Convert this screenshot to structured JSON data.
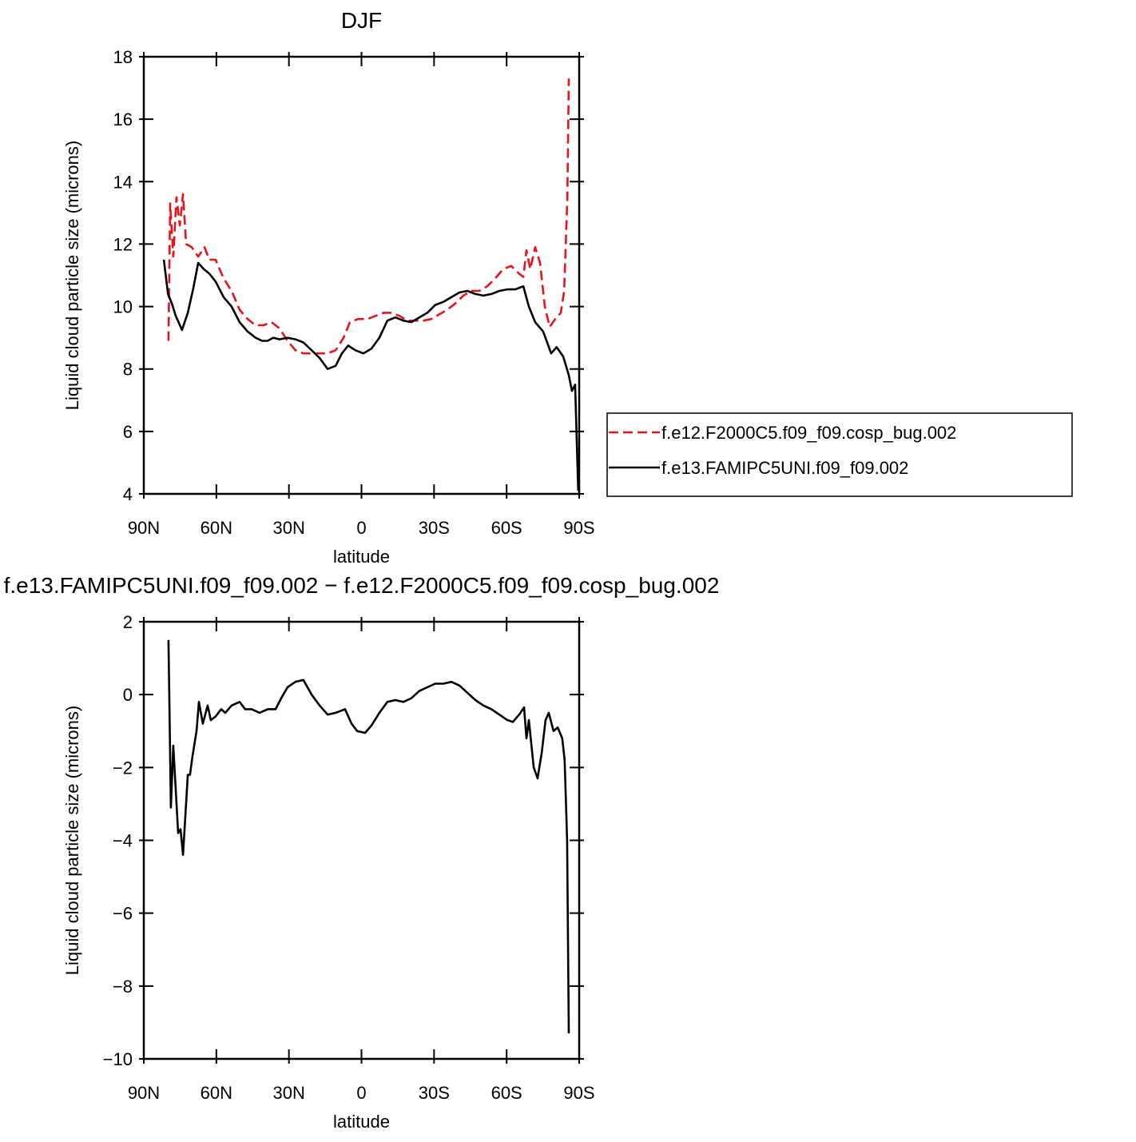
{
  "chart_data": [
    {
      "type": "line",
      "title": "DJF",
      "xlabel": "latitude",
      "ylabel": "Liquid cloud particle size (microns)",
      "xlim": [
        90,
        -90
      ],
      "xticks": [
        {
          "value": 90,
          "label": "90N"
        },
        {
          "value": 60,
          "label": "60N"
        },
        {
          "value": 30,
          "label": "30N"
        },
        0,
        {
          "value": -30,
          "label": "30S"
        },
        {
          "value": -60,
          "label": "60S"
        },
        {
          "value": -90,
          "label": "90S"
        }
      ],
      "ylim": [
        4,
        18
      ],
      "yticks": [
        4,
        6,
        8,
        10,
        12,
        14,
        16,
        18
      ],
      "legend": "right",
      "series": [
        {
          "name": "f.e12.F2000C5.f09_f09.cosp_bug.002",
          "color": "#e8121a",
          "style": "dashed",
          "x": [
            79.8,
            79.1,
            77.8,
            76.5,
            75.1,
            73.8,
            72.5,
            70.2,
            67.5,
            64.9,
            62.9,
            60.3,
            57,
            53.7,
            50.4,
            47.1,
            43.8,
            40.5,
            37.2,
            33.9,
            30.6,
            27.3,
            24,
            20.6,
            17.3,
            14,
            10.7,
            7.4,
            4.8,
            1.4,
            -2.5,
            -5.8,
            -9.1,
            -12.4,
            -15.7,
            -19,
            -22.3,
            -25.6,
            -28.9,
            -32.2,
            -35.5,
            -38.8,
            -42.1,
            -45.4,
            -48.7,
            -52,
            -55.3,
            -58.6,
            -61.9,
            -65.2,
            -66.9,
            -68.2,
            -69.8,
            -71.8,
            -73.8,
            -75.8,
            -77.8,
            -80.1,
            -82.4,
            -83.8,
            -85.1,
            -85.7
          ],
          "values": [
            8.9,
            13.3,
            11.6,
            13.5,
            12.6,
            13.6,
            12.0,
            11.9,
            11.6,
            11.9,
            11.5,
            11.5,
            10.9,
            10.5,
            9.9,
            9.6,
            9.4,
            9.4,
            9.5,
            9.3,
            8.9,
            8.6,
            8.5,
            8.5,
            8.5,
            8.5,
            8.6,
            9.0,
            9.5,
            9.6,
            9.6,
            9.7,
            9.8,
            9.8,
            9.7,
            9.55,
            9.55,
            9.55,
            9.6,
            9.75,
            9.9,
            10.1,
            10.35,
            10.5,
            10.5,
            10.65,
            10.9,
            11.2,
            11.3,
            11.05,
            10.95,
            11.8,
            11.2,
            11.9,
            11.4,
            10.0,
            9.35,
            9.6,
            9.8,
            10.5,
            13.5,
            17.3
          ]
        },
        {
          "name": "f.e13.FAMIPC5UNI.f09_f09.002",
          "color": "#000000",
          "style": "solid",
          "x": [
            81.7,
            80,
            78.4,
            76.8,
            74.2,
            71.8,
            69.5,
            67.5,
            65.2,
            62.9,
            60.3,
            57,
            53.7,
            50.4,
            47.1,
            43.8,
            41.1,
            38.8,
            36.5,
            33.9,
            30.6,
            27.3,
            24,
            20.6,
            17.3,
            14,
            10.7,
            8.1,
            5.5,
            2.5,
            -0.8,
            -4.1,
            -7.4,
            -10.7,
            -14,
            -17.3,
            -20.6,
            -23.9,
            -27.2,
            -30.5,
            -33.9,
            -37.2,
            -40.5,
            -43.8,
            -47.1,
            -50.4,
            -53.7,
            -57,
            -60.3,
            -63.6,
            -66.9,
            -69.2,
            -71.8,
            -75.1,
            -78.4,
            -80.7,
            -83.4,
            -85.7,
            -87,
            -88.3,
            -89.6
          ],
          "values": [
            11.5,
            10.4,
            10.1,
            9.7,
            9.25,
            9.8,
            10.6,
            11.4,
            11.2,
            11.05,
            10.8,
            10.3,
            10.0,
            9.5,
            9.2,
            9.0,
            8.9,
            8.9,
            9.0,
            8.95,
            9.0,
            8.95,
            8.85,
            8.6,
            8.35,
            8.0,
            8.1,
            8.5,
            8.75,
            8.6,
            8.5,
            8.65,
            9.0,
            9.55,
            9.65,
            9.55,
            9.5,
            9.65,
            9.8,
            10.05,
            10.15,
            10.3,
            10.45,
            10.5,
            10.4,
            10.35,
            10.4,
            10.5,
            10.55,
            10.55,
            10.65,
            10.0,
            9.5,
            9.2,
            8.5,
            8.7,
            8.4,
            7.8,
            7.3,
            7.5,
            4.1
          ]
        }
      ]
    },
    {
      "type": "line",
      "title": "f.e13.FAMIPC5UNI.f09_f09.002 − f.e12.F2000C5.f09_f09.cosp_bug.002",
      "xlabel": "latitude",
      "ylabel": "Liquid cloud particle size (microns)",
      "xlim": [
        90,
        -90
      ],
      "xticks": [
        {
          "value": 90,
          "label": "90N"
        },
        {
          "value": 60,
          "label": "60N"
        },
        {
          "value": 30,
          "label": "30N"
        },
        0,
        {
          "value": -30,
          "label": "30S"
        },
        {
          "value": -60,
          "label": "60S"
        },
        {
          "value": -90,
          "label": "90S"
        }
      ],
      "ylim": [
        -10,
        2
      ],
      "yticks": [
        {
          "value": -10,
          "label": "−10"
        },
        {
          "value": -8,
          "label": "−8"
        },
        {
          "value": -6,
          "label": "−6"
        },
        {
          "value": -4,
          "label": "−4"
        },
        {
          "value": -2,
          "label": "−2"
        },
        0,
        2
      ],
      "series": [
        {
          "color": "#000000",
          "style": "solid",
          "x": [
            79.8,
            78.8,
            77.8,
            75.8,
            74.8,
            73.8,
            71.8,
            70.9,
            69.9,
            68.2,
            67.2,
            65.6,
            63.6,
            62.3,
            60.3,
            58,
            56.3,
            53.7,
            50.4,
            48.1,
            45.4,
            42.1,
            38.8,
            35.5,
            33.2,
            30.6,
            27.3,
            24,
            20.6,
            17.3,
            14,
            10.7,
            6.8,
            4.1,
            1.8,
            -1.5,
            -4.1,
            -7.4,
            -10.7,
            -14,
            -17.3,
            -20.6,
            -23.9,
            -27.2,
            -30.5,
            -33.9,
            -37.2,
            -40.5,
            -43.8,
            -47.1,
            -50.4,
            -53.7,
            -57,
            -60.3,
            -62.6,
            -65.2,
            -67.2,
            -68.2,
            -69.2,
            -71.2,
            -72.8,
            -74.5,
            -76.1,
            -77.4,
            -79.4,
            -81.1,
            -83,
            -84,
            -85,
            -85.7
          ],
          "values": [
            1.5,
            -3.1,
            -1.4,
            -3.8,
            -3.7,
            -4.4,
            -2.2,
            -2.2,
            -1.7,
            -1.0,
            -0.2,
            -0.8,
            -0.3,
            -0.7,
            -0.6,
            -0.4,
            -0.5,
            -0.3,
            -0.2,
            -0.4,
            -0.4,
            -0.5,
            -0.4,
            -0.4,
            -0.1,
            0.2,
            0.35,
            0.4,
            0.0,
            -0.3,
            -0.55,
            -0.5,
            -0.4,
            -0.8,
            -1.0,
            -1.05,
            -0.85,
            -0.5,
            -0.2,
            -0.15,
            -0.2,
            -0.1,
            0.1,
            0.2,
            0.3,
            0.3,
            0.35,
            0.25,
            0.05,
            -0.15,
            -0.3,
            -0.4,
            -0.55,
            -0.7,
            -0.75,
            -0.55,
            -0.35,
            -1.2,
            -0.7,
            -2.0,
            -2.3,
            -1.6,
            -0.7,
            -0.5,
            -1.0,
            -0.9,
            -1.2,
            -1.8,
            -4.0,
            -9.3
          ]
        }
      ]
    }
  ]
}
